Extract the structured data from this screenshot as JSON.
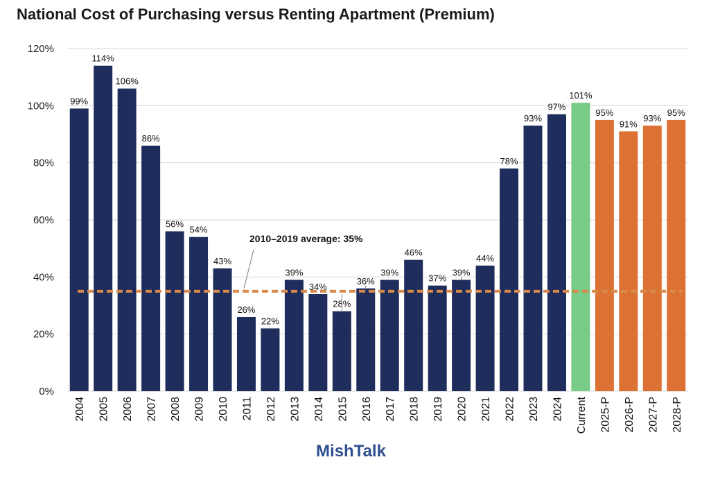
{
  "title": "National Cost of Purchasing versus Renting Apartment (Premium)",
  "watermark": "MishTalk",
  "colors": {
    "historical": "#1f2d5c",
    "current": "#79cc87",
    "projected": "#db7234",
    "average": "#d98a4a",
    "grid": "#d9d9d9"
  },
  "chart_data": {
    "type": "bar",
    "title": "National Cost of Purchasing versus Renting Apartment (Premium)",
    "categories": [
      "2004",
      "2005",
      "2006",
      "2007",
      "2008",
      "2009",
      "2010",
      "2011",
      "2012",
      "2013",
      "2014",
      "2015",
      "2016",
      "2017",
      "2018",
      "2019",
      "2020",
      "2021",
      "2022",
      "2023",
      "2024",
      "Current",
      "2025-P",
      "2026-P",
      "2027-P",
      "2028-P"
    ],
    "values": [
      99,
      114,
      106,
      86,
      56,
      54,
      43,
      26,
      22,
      39,
      34,
      28,
      36,
      39,
      46,
      37,
      39,
      44,
      78,
      93,
      97,
      101,
      95,
      91,
      93,
      95
    ],
    "labels": [
      "99%",
      "114%",
      "106%",
      "86%",
      "56%",
      "54%",
      "43%",
      "26%",
      "22%",
      "39%",
      "34%",
      "28%",
      "36%",
      "39%",
      "46%",
      "37%",
      "39%",
      "44%",
      "78%",
      "93%",
      "97%",
      "101%",
      "95%",
      "91%",
      "93%",
      "95%"
    ],
    "groups": [
      "historical",
      "historical",
      "historical",
      "historical",
      "historical",
      "historical",
      "historical",
      "historical",
      "historical",
      "historical",
      "historical",
      "historical",
      "historical",
      "historical",
      "historical",
      "historical",
      "historical",
      "historical",
      "historical",
      "historical",
      "historical",
      "current",
      "projected",
      "projected",
      "projected",
      "projected"
    ],
    "ylim": [
      0,
      120
    ],
    "yticks": [
      "0%",
      "20%",
      "40%",
      "60%",
      "80%",
      "100%",
      "120%"
    ],
    "grid": true,
    "average": {
      "value": 35,
      "label": "2010–2019 average: 35%"
    },
    "xlabel": "",
    "ylabel": ""
  }
}
